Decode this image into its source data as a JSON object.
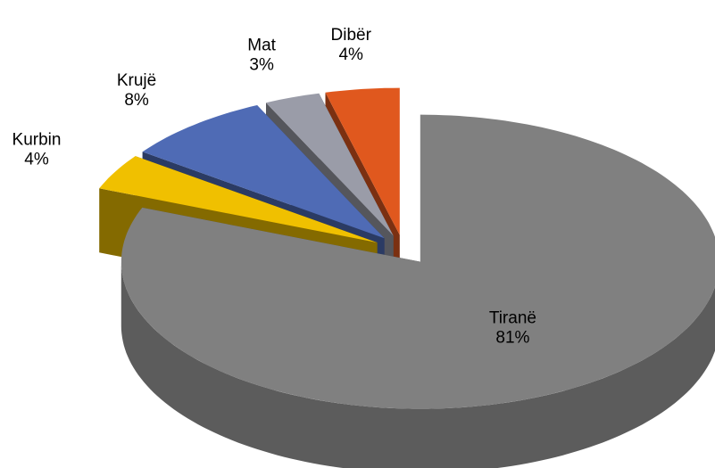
{
  "chart_data": {
    "type": "pie",
    "categories": [
      "Tiranë",
      "Kurbin",
      "Krujë",
      "Mat",
      "Dibër"
    ],
    "values": [
      81,
      4,
      8,
      3,
      4
    ],
    "value_labels": [
      "81%",
      "4%",
      "8%",
      "3%",
      "4%"
    ],
    "colors": [
      "#808080",
      "#f0c000",
      "#4f6bb5",
      "#9a9ca8",
      "#e0581e"
    ]
  }
}
